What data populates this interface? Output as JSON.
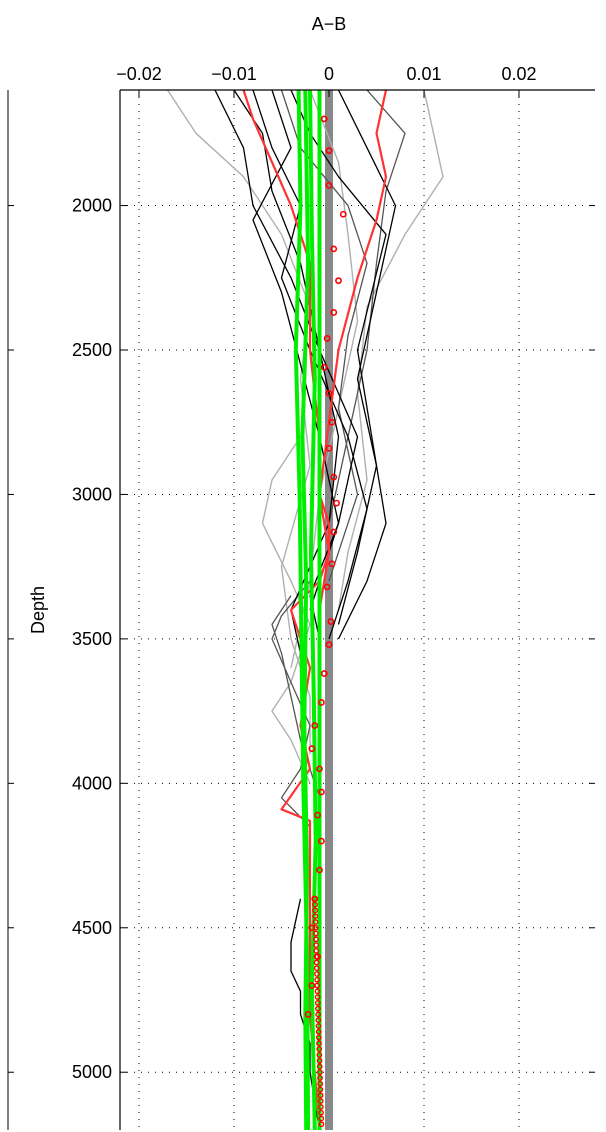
{
  "chart_data": {
    "type": "line",
    "title": "A−B",
    "xlabel": "",
    "ylabel": "Depth",
    "xlim": [
      -0.022,
      0.028
    ],
    "ylim": [
      1600,
      5200
    ],
    "y_reversed": true,
    "x_axis_position": "top",
    "grid": true,
    "x_ticks": [
      -0.02,
      -0.01,
      0,
      0.01,
      0.02
    ],
    "x_tick_labels": [
      "−0.02",
      "−0.01",
      "0",
      "0.01",
      "0.02"
    ],
    "y_ticks": [
      2000,
      2500,
      3000,
      3500,
      4000,
      4500,
      5000
    ],
    "y_tick_labels": [
      "2000",
      "2500",
      "3000",
      "3500",
      "4000",
      "4500",
      "5000"
    ],
    "colors": {
      "dark": "#000000",
      "mid": "#555555",
      "light": "#b0b0b0",
      "red": "#ff3333",
      "green": "#00ee00",
      "zero_line": "#888888",
      "markers": "#ff0000"
    },
    "series": [
      {
        "group": "black",
        "x": [
          -0.004,
          -0.002,
          0.001,
          0.006,
          0.003,
          0.005,
          0.006,
          0.004,
          0.001
        ],
        "y": [
          1600,
          1750,
          1900,
          2100,
          2500,
          2900,
          3100,
          3300,
          3500
        ]
      },
      {
        "group": "black",
        "x": [
          -0.01,
          -0.007,
          -0.006,
          -0.003,
          -0.001,
          0.003,
          0.001,
          -0.002,
          -0.001
        ],
        "y": [
          1600,
          1750,
          1950,
          2200,
          2500,
          2800,
          3100,
          3350,
          3500
        ]
      },
      {
        "group": "black",
        "x": [
          -0.012,
          -0.009,
          -0.008,
          -0.004,
          -0.001,
          0.001,
          0.0,
          -0.004,
          -0.003
        ],
        "y": [
          1600,
          1800,
          2000,
          2250,
          2500,
          2800,
          3100,
          3400,
          3550
        ]
      },
      {
        "group": "black",
        "x": [
          -0.008,
          -0.006,
          -0.003,
          -0.005,
          -0.002,
          0.002,
          0.004,
          0.002,
          0.0
        ],
        "y": [
          1600,
          1800,
          2000,
          2250,
          2500,
          2800,
          3050,
          3300,
          3500
        ]
      },
      {
        "group": "black",
        "x": [
          0.001,
          0.004,
          0.007,
          0.005,
          0.003,
          0.005,
          0.003,
          0.001
        ],
        "y": [
          1600,
          1800,
          2000,
          2300,
          2600,
          2900,
          3200,
          3450
        ]
      },
      {
        "group": "black",
        "x": [
          -0.006,
          -0.004,
          -0.008,
          -0.005,
          -0.003,
          -0.001,
          0.001,
          -0.002
        ],
        "y": [
          1600,
          1800,
          2050,
          2300,
          2550,
          2800,
          3100,
          3400
        ]
      },
      {
        "group": "black",
        "x": [
          -0.003,
          -0.004,
          -0.004,
          -0.003,
          -0.003,
          -0.002,
          -0.002,
          -0.001
        ],
        "y": [
          4400,
          4550,
          4650,
          4720,
          4800,
          4900,
          5000,
          5200
        ]
      },
      {
        "group": "mid",
        "x": [
          -0.004,
          -0.006,
          -0.005,
          -0.004,
          -0.003,
          -0.002,
          -0.001,
          -0.001
        ],
        "y": [
          3350,
          3450,
          3550,
          3700,
          3850,
          3950,
          4050,
          4200
        ]
      },
      {
        "group": "mid",
        "x": [
          -0.002,
          -0.005,
          -0.006,
          -0.004,
          -0.002,
          -0.003,
          -0.005,
          -0.002
        ],
        "y": [
          3300,
          3420,
          3500,
          3650,
          3800,
          3950,
          4050,
          4150
        ]
      },
      {
        "group": "mid",
        "x": [
          -0.005,
          -0.003,
          0.002,
          0.004,
          0.002,
          0.001,
          0.003,
          0.0
        ],
        "y": [
          1600,
          1800,
          2000,
          2200,
          2450,
          2700,
          3000,
          3300
        ]
      },
      {
        "group": "mid",
        "x": [
          0.004,
          0.008,
          0.006,
          0.005,
          0.004,
          0.002,
          0.0
        ],
        "y": [
          1600,
          1750,
          1950,
          2200,
          2500,
          2800,
          3100
        ]
      },
      {
        "group": "light",
        "x": [
          -0.017,
          -0.014,
          -0.009,
          -0.005,
          -0.002,
          -0.003,
          -0.002,
          -0.005,
          -0.004,
          -0.002,
          -0.002
        ],
        "y": [
          1600,
          1750,
          1900,
          2100,
          2350,
          2600,
          2900,
          3250,
          3500,
          3700,
          3900
        ]
      },
      {
        "group": "light",
        "x": [
          0.01,
          0.011,
          0.012,
          0.008,
          0.004,
          0.003,
          0.004,
          0.002,
          0.001
        ],
        "y": [
          1600,
          1750,
          1900,
          2100,
          2350,
          2650,
          2950,
          3200,
          3400
        ]
      },
      {
        "group": "light",
        "x": [
          -0.003,
          -0.006,
          -0.007,
          -0.004,
          -0.002,
          -0.003,
          -0.004,
          -0.006,
          -0.004,
          -0.002
        ],
        "y": [
          2800,
          2950,
          3100,
          3300,
          3450,
          3550,
          3650,
          3750,
          3850,
          4000
        ]
      },
      {
        "group": "light",
        "x": [
          -0.002,
          0.001,
          0.002,
          0.003,
          0.001,
          -0.001,
          -0.002,
          -0.004
        ],
        "y": [
          1600,
          1850,
          2100,
          2400,
          2700,
          3000,
          3300,
          3600
        ]
      },
      {
        "group": "red",
        "x": [
          -0.009,
          -0.008,
          -0.006,
          -0.004,
          -0.002,
          -0.002,
          -0.001,
          -0.001,
          0.0,
          0.0,
          -0.001,
          -0.004,
          -0.002,
          -0.003,
          -0.002,
          -0.005,
          -0.002,
          -0.002,
          -0.002,
          -0.001
        ],
        "y": [
          1600,
          1700,
          1850,
          2000,
          2200,
          2500,
          2800,
          3000,
          3100,
          3200,
          3300,
          3400,
          3600,
          3800,
          3950,
          4090,
          4130,
          4500,
          4800,
          5200
        ]
      },
      {
        "group": "red",
        "x": [
          0.006,
          0.005,
          0.006,
          0.005,
          0.003,
          0.001,
          0.0,
          -0.001,
          0.0,
          -0.001
        ],
        "y": [
          1600,
          1750,
          1900,
          2050,
          2250,
          2500,
          2750,
          3000,
          3200,
          3400
        ]
      },
      {
        "group": "green",
        "x": [
          -0.001,
          -0.001,
          -0.001,
          -0.001,
          -0.001,
          -0.001,
          -0.001,
          -0.001
        ],
        "y": [
          1600,
          2200,
          2800,
          3300,
          3800,
          4300,
          4800,
          5200
        ]
      },
      {
        "group": "green",
        "x": [
          -0.0025,
          -0.0022,
          -0.0028,
          -0.0024,
          -0.0026,
          -0.0023,
          -0.0025,
          -0.0024
        ],
        "y": [
          1600,
          2200,
          2800,
          3300,
          3800,
          4300,
          4800,
          5200
        ]
      },
      {
        "group": "green",
        "x": [
          -0.002,
          -0.0018,
          -0.0015,
          -0.0019,
          -0.0016,
          -0.0014,
          -0.0018,
          -0.0015
        ],
        "y": [
          1600,
          2100,
          2600,
          3200,
          3700,
          4200,
          4700,
          5200
        ]
      },
      {
        "group": "green",
        "x": [
          -0.0032,
          -0.003,
          -0.0035,
          -0.0031,
          -0.0029,
          -0.0027,
          -0.0023,
          -0.0022
        ],
        "y": [
          1600,
          2000,
          2500,
          3000,
          3500,
          4000,
          4600,
          5200
        ]
      }
    ],
    "markers": {
      "x": [
        -0.0005,
        0.0,
        0.0,
        0.0015,
        0.0005,
        0.001,
        0.0005,
        -0.0002,
        -0.0005,
        0.0,
        0.0003,
        0.0,
        0.0005,
        0.0008,
        0.0005,
        0.0003,
        -0.0002,
        0.0002,
        0.0,
        -0.0005,
        -0.0008,
        -0.0015,
        -0.0018,
        -0.001,
        -0.0008,
        -0.0012,
        -0.0008,
        -0.001,
        -0.0015,
        -0.0018,
        -0.0012,
        -0.0018,
        -0.0022
      ],
      "y": [
        1700,
        1810,
        1930,
        2030,
        2150,
        2260,
        2370,
        2460,
        2560,
        2650,
        2750,
        2840,
        2940,
        3030,
        3130,
        3240,
        3320,
        3440,
        3520,
        3620,
        3720,
        3800,
        3880,
        3950,
        4030,
        4110,
        4200,
        4300,
        4400,
        4500,
        4600,
        4700,
        4800
      ]
    },
    "marker_dense": {
      "x_from": -0.0015,
      "x_to": -0.0008,
      "y_from": 4400,
      "y_to": 5180,
      "count": 40
    }
  }
}
